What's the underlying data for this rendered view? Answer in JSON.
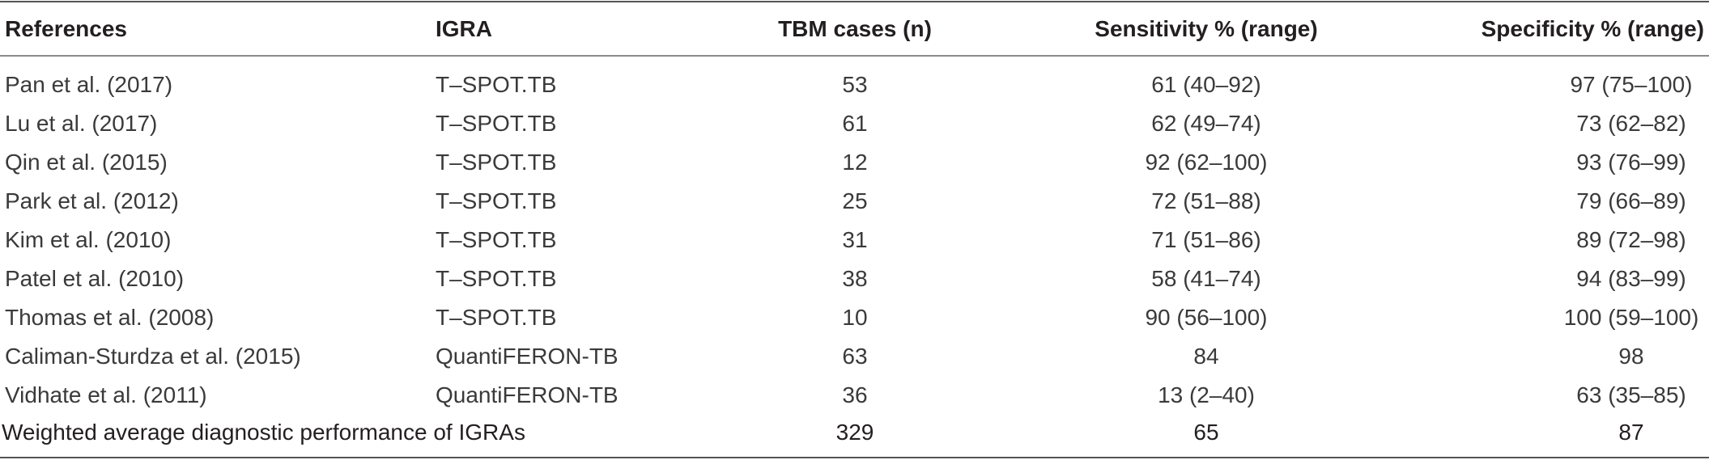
{
  "table": {
    "headers": {
      "references": "References",
      "igra": "IGRA",
      "tbm_cases": "TBM cases (n)",
      "sensitivity": "Sensitivity % (range)",
      "specificity": "Specificity % (range)"
    },
    "rows": [
      {
        "references": "Pan et al. (2017)",
        "igra": "T–SPOT.TB",
        "tbm_cases": "53",
        "sensitivity": "61 (40–92)",
        "specificity": "97 (75–100)"
      },
      {
        "references": "Lu et al. (2017)",
        "igra": "T–SPOT.TB",
        "tbm_cases": "61",
        "sensitivity": "62 (49–74)",
        "specificity": "73 (62–82)"
      },
      {
        "references": "Qin et al. (2015)",
        "igra": "T–SPOT.TB",
        "tbm_cases": "12",
        "sensitivity": "92 (62–100)",
        "specificity": "93 (76–99)"
      },
      {
        "references": "Park et al. (2012)",
        "igra": "T–SPOT.TB",
        "tbm_cases": "25",
        "sensitivity": "72 (51–88)",
        "specificity": "79 (66–89)"
      },
      {
        "references": "Kim et al. (2010)",
        "igra": "T–SPOT.TB",
        "tbm_cases": "31",
        "sensitivity": "71 (51–86)",
        "specificity": "89 (72–98)"
      },
      {
        "references": "Patel et al. (2010)",
        "igra": "T–SPOT.TB",
        "tbm_cases": "38",
        "sensitivity": "58 (41–74)",
        "specificity": "94 (83–99)"
      },
      {
        "references": "Thomas et al. (2008)",
        "igra": "T–SPOT.TB",
        "tbm_cases": "10",
        "sensitivity": "90 (56–100)",
        "specificity": "100 (59–100)"
      },
      {
        "references": "Caliman-Sturdza et al. (2015)",
        "igra": "QuantiFERON-TB",
        "tbm_cases": "63",
        "sensitivity": "84",
        "specificity": "98"
      },
      {
        "references": "Vidhate et al. (2011)",
        "igra": "QuantiFERON-TB",
        "tbm_cases": "36",
        "sensitivity": "13 (2–40)",
        "specificity": "63 (35–85)"
      }
    ],
    "summary": {
      "label": "Weighted average diagnostic performance of IGRAs",
      "tbm_cases": "329",
      "sensitivity": "65",
      "specificity": "87"
    }
  }
}
